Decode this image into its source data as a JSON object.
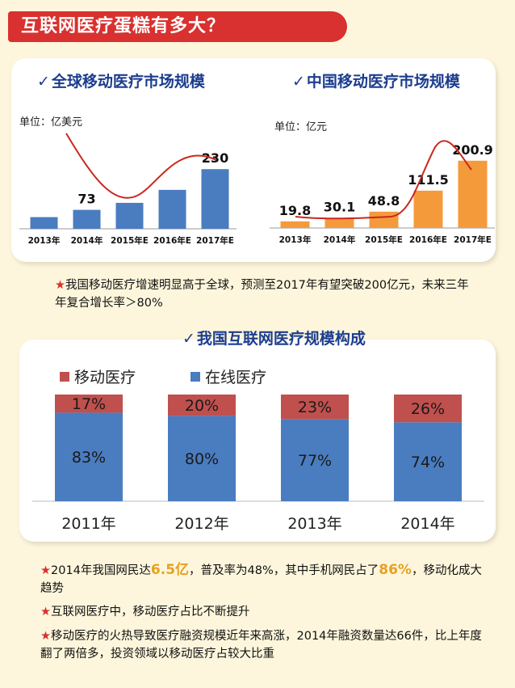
{
  "header": {
    "title": "互联网医疗蛋糕有多大？"
  },
  "colors": {
    "accent_red": "#d8312f",
    "bar_blue": "#4a7cc0",
    "bar_orange": "#f59a3b",
    "trend_red": "#c8281e",
    "title_blue": "#1c3d8f"
  },
  "chart_data": [
    {
      "type": "bar",
      "title": "全球移动医疗市场规模",
      "unit": "单位：亿美元",
      "categories": [
        "2013年",
        "2014年",
        "2015年E",
        "2016年E",
        "2017年E"
      ],
      "values": [
        45,
        73,
        100,
        150,
        230
      ],
      "data_labels": [
        "",
        "73",
        "",
        "",
        "230"
      ],
      "ylim": [
        0,
        240
      ],
      "trend_line": true,
      "bar_color": "#4a7cc0"
    },
    {
      "type": "bar",
      "title": "中国移动医疗市场规模",
      "unit": "单位：亿元",
      "categories": [
        "2013年",
        "2014年",
        "2015年E",
        "2016年E",
        "2017年E"
      ],
      "values": [
        19.8,
        30.1,
        48.8,
        111.5,
        200.9
      ],
      "data_labels": [
        "19.8",
        "30.1",
        "48.8",
        "111.5",
        "200.9"
      ],
      "ylim": [
        0,
        210
      ],
      "trend_line": true,
      "bar_color": "#f59a3b"
    },
    {
      "type": "bar",
      "stacked": true,
      "percent": true,
      "title": "我国互联网医疗规模构成",
      "categories": [
        "2011年",
        "2012年",
        "2013年",
        "2014年"
      ],
      "series": [
        {
          "name": "在线医疗",
          "values": [
            83,
            80,
            77,
            74
          ],
          "labels": [
            "83%",
            "80%",
            "77%",
            "74%"
          ],
          "color": "#4a7cc0"
        },
        {
          "name": "移动医疗",
          "values": [
            17,
            20,
            23,
            26
          ],
          "labels": [
            "17%",
            "20%",
            "23%",
            "26%"
          ],
          "color": "#c0504d"
        }
      ],
      "ylim": [
        0,
        100
      ],
      "legend_placement": "top-left"
    }
  ],
  "notes": {
    "n1": "我国移动医疗增速明显高于全球，预测至2017年有望突破200亿元，未来三年年复合增长率＞80%",
    "n2_a": "2014年我国网民达",
    "n2_hl1": "6.5亿",
    "n2_b": "，普及率为48%，其中手机网民占了",
    "n2_hl2": "86%",
    "n2_c": "，移动化成大趋势",
    "n3": "互联网医疗中，移动医疗占比不断提升",
    "n4": "移动医疗的火热导致医疗融资规模近年来高涨，2014年融资数量达66件，比上年度翻了两倍多，投资领域以移动医疗占较大比重",
    "star": "★"
  }
}
